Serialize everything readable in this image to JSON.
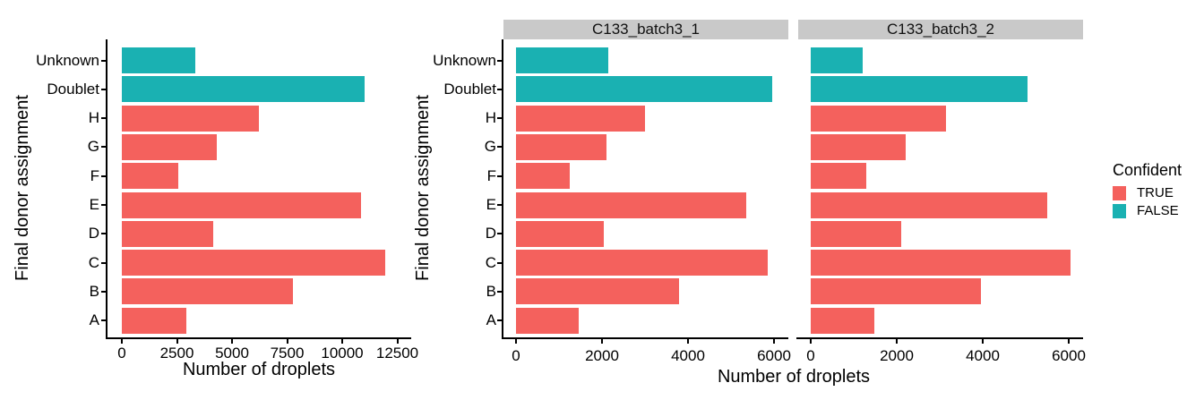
{
  "figure": {
    "background": "#FFFFFF",
    "axis_color": "#000000",
    "text_color": "#000000"
  },
  "palette": {
    "confident_true": "#F4615D",
    "confident_false": "#1AB1B2",
    "strip_bg": "#C9C9C9"
  },
  "legend": {
    "title": "Confident",
    "items": [
      {
        "label": "TRUE",
        "color": "#F4615D"
      },
      {
        "label": "FALSE",
        "color": "#1AB1B2"
      }
    ]
  },
  "chart_data": [
    {
      "id": "overall-droplets",
      "type": "bar",
      "orientation": "horizontal",
      "title": "",
      "xlabel": "Number of droplets",
      "ylabel": "Final donor assignment",
      "grid": false,
      "legend_position": "none",
      "categories_top_to_bottom": [
        "Unknown",
        "Doublet",
        "H",
        "G",
        "F",
        "E",
        "D",
        "C",
        "B",
        "A"
      ],
      "confident_by_category": [
        false,
        false,
        true,
        true,
        true,
        true,
        true,
        true,
        true,
        true
      ],
      "values": [
        3350,
        11000,
        6200,
        4300,
        2550,
        10850,
        4150,
        11950,
        7750,
        2930
      ],
      "xlim": [
        0,
        12500
      ],
      "xticks": [
        0,
        2500,
        5000,
        7500,
        10000,
        12500
      ]
    },
    {
      "id": "droplets-by-batch",
      "type": "bar",
      "orientation": "horizontal",
      "title": "",
      "xlabel": "Number of droplets",
      "ylabel": "Final donor assignment",
      "grid": false,
      "legend_position": "right",
      "categories_top_to_bottom": [
        "Unknown",
        "Doublet",
        "H",
        "G",
        "F",
        "E",
        "D",
        "C",
        "B",
        "A"
      ],
      "confident_by_category": [
        false,
        false,
        true,
        true,
        true,
        true,
        true,
        true,
        true,
        true
      ],
      "facets": [
        {
          "label": "C133_batch3_1",
          "values": [
            2150,
            5950,
            3000,
            2100,
            1250,
            5350,
            2050,
            5850,
            3800,
            1450
          ]
        },
        {
          "label": "C133_batch3_2",
          "values": [
            1200,
            5050,
            3150,
            2200,
            1300,
            5500,
            2100,
            6050,
            3950,
            1480
          ]
        }
      ],
      "xlim": [
        0,
        6000
      ],
      "xticks": [
        0,
        2000,
        4000,
        6000
      ]
    }
  ]
}
